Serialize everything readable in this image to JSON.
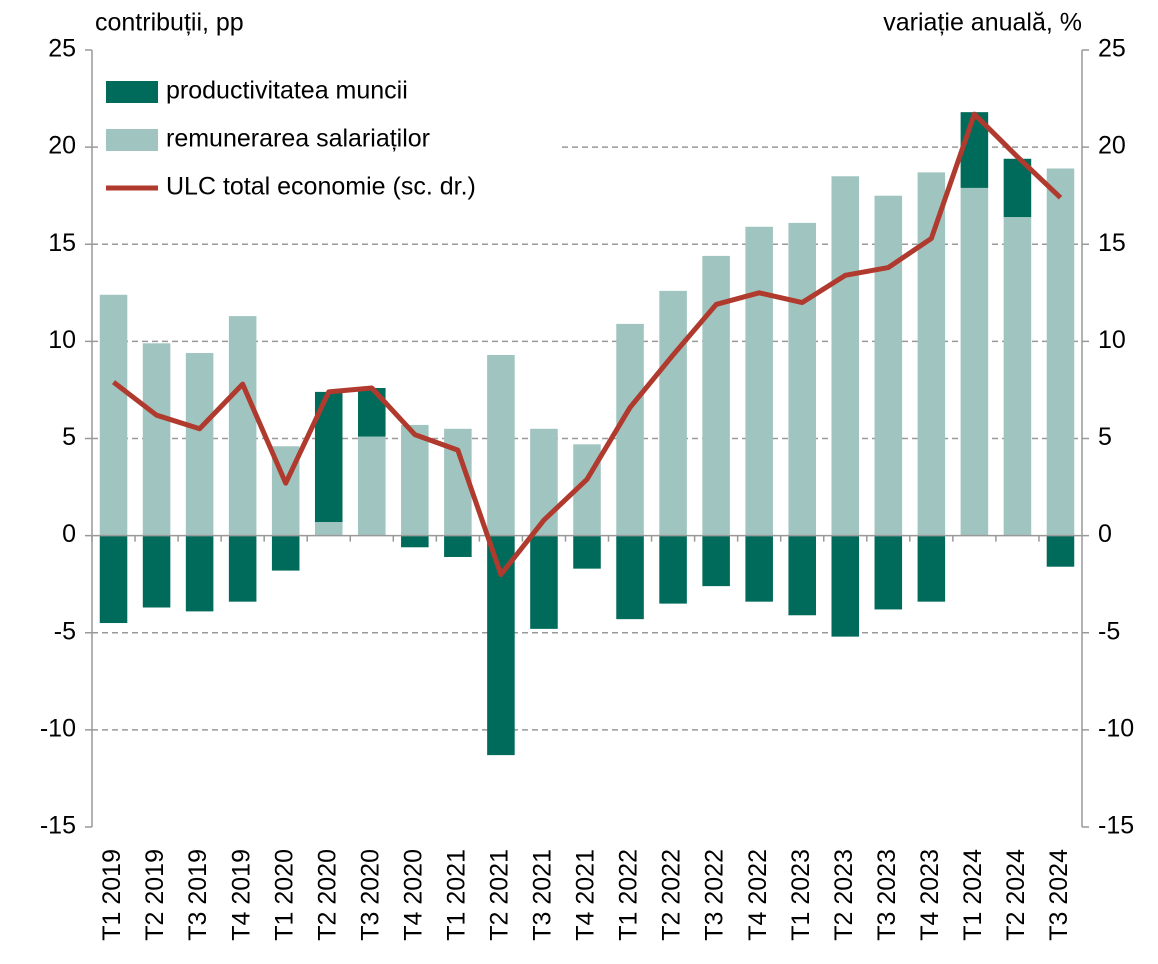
{
  "chart_data": {
    "type": "bar",
    "y_label": "contribuții, pp",
    "y2_label": "variație anuală, %",
    "categories": [
      "T1 2019",
      "T2 2019",
      "T3 2019",
      "T4 2019",
      "T1 2020",
      "T2 2020",
      "T3 2020",
      "T4 2020",
      "T1 2021",
      "T2 2021",
      "T3 2021",
      "T4 2021",
      "T1 2022",
      "T2 2022",
      "T3 2022",
      "T4 2022",
      "T1 2023",
      "T2 2023",
      "T3 2023",
      "T4 2023",
      "T1 2024",
      "T2 2024",
      "T3 2024"
    ],
    "series": [
      {
        "name": "productivitatea muncii",
        "type": "bar",
        "color": "#006b5a",
        "values": [
          -4.5,
          -3.7,
          -3.9,
          -3.4,
          -1.8,
          6.7,
          2.5,
          -0.6,
          -1.1,
          -11.3,
          -4.8,
          -1.7,
          -4.3,
          -3.5,
          -2.6,
          -3.4,
          -4.1,
          -5.2,
          -3.8,
          -3.4,
          3.9,
          3.0,
          -1.6
        ]
      },
      {
        "name": "remunerarea salariaților",
        "type": "bar",
        "color": "#a0c4bf",
        "values": [
          12.4,
          9.9,
          9.4,
          11.3,
          4.6,
          0.7,
          5.1,
          5.7,
          5.5,
          9.3,
          5.5,
          4.7,
          10.9,
          12.6,
          14.4,
          15.9,
          16.1,
          18.5,
          17.5,
          18.7,
          17.9,
          16.4,
          18.9
        ]
      },
      {
        "name": "ULC total economie (sc. dr.)",
        "type": "line",
        "color": "#b03a2e",
        "axis": "y2",
        "values": [
          7.9,
          6.2,
          5.5,
          7.8,
          2.7,
          7.4,
          7.6,
          5.2,
          4.4,
          -2.0,
          0.8,
          2.9,
          6.6,
          9.3,
          11.9,
          12.5,
          12.0,
          13.4,
          13.8,
          15.3,
          21.7,
          19.5,
          17.4
        ]
      }
    ],
    "ylim": [
      -15,
      25
    ],
    "yticks": [
      -15,
      -10,
      -5,
      0,
      5,
      10,
      15,
      20,
      25
    ],
    "y2lim": [
      -15,
      25
    ],
    "y2ticks": [
      -15,
      -10,
      -5,
      0,
      5,
      10,
      15,
      20,
      25
    ],
    "stacked": true,
    "grid": true,
    "legend": "top-left"
  }
}
